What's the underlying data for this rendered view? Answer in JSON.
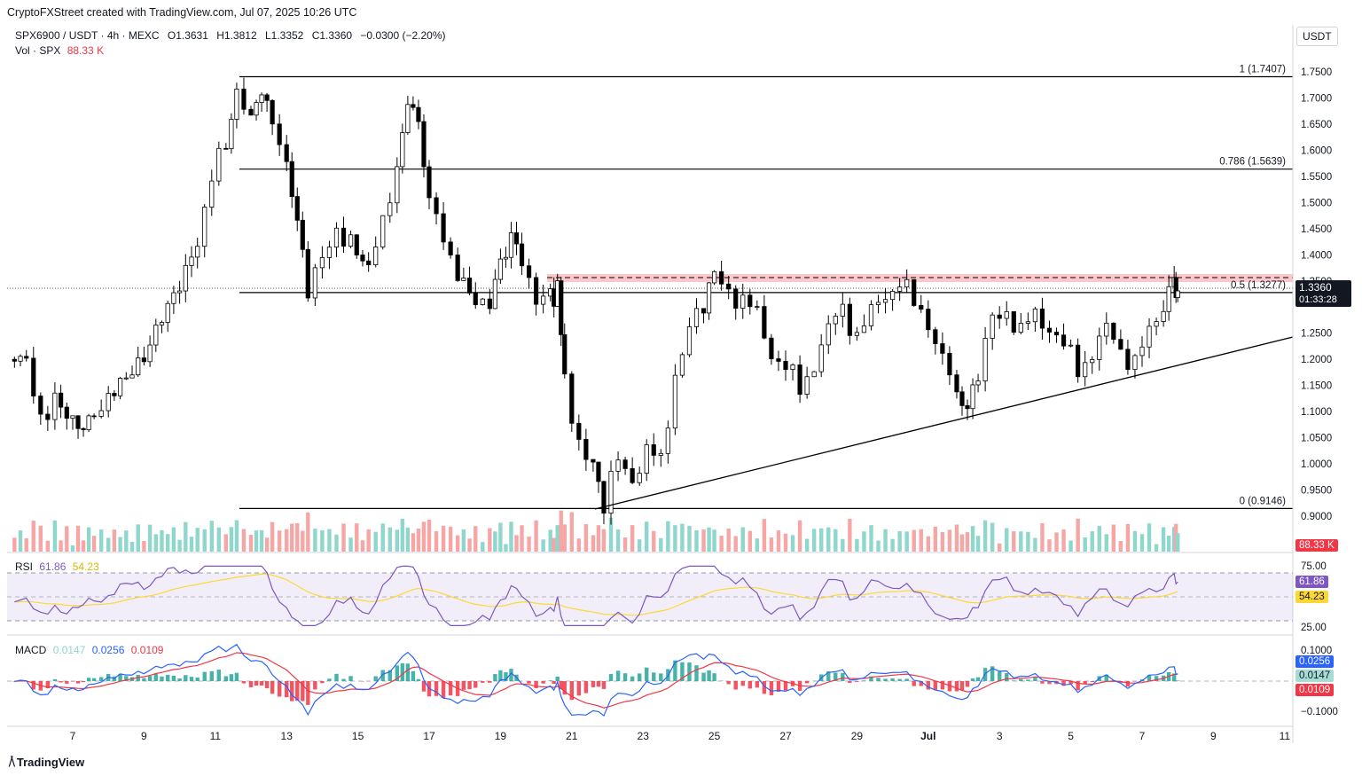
{
  "header": {
    "attribution": "CryptoFXStreet created with TradingView.com, Jul 07, 2025 10:26 UTC",
    "symbol": "SPX6900 / USDT · 4h · MEXC",
    "open": "O1.3631",
    "high": "H1.3812",
    "low": "L1.3352",
    "close": "C1.3360",
    "change": "−0.0300 (−2.20%)",
    "vol_label": "Vol · SPX",
    "vol_value": "88.33 K",
    "currency": "USDT"
  },
  "price_tag": {
    "price": "1.3360",
    "countdown": "01:33:28"
  },
  "volume_tag": "88.33 K",
  "rsi": {
    "label": "RSI",
    "value": "61.86",
    "ma": "54.23",
    "levels": [
      "75.00",
      "25.00"
    ]
  },
  "macd": {
    "label": "MACD",
    "hist": "0.0147",
    "macd": "0.0256",
    "signal": "0.0109",
    "levels": [
      "0.1000",
      "−0.1000"
    ]
  },
  "fib_levels": [
    {
      "label": "1 (1.7407)",
      "price": 1.7407
    },
    {
      "label": "0.786 (1.5639)",
      "price": 1.5639
    },
    {
      "label": "0.5 (1.3277)",
      "price": 1.3277
    },
    {
      "label": "0 (0.9146)",
      "price": 0.9146
    }
  ],
  "brand": "TradingView",
  "colors": {
    "up": "#26a69a",
    "down": "#000000",
    "vol_up": "#8fd6cc",
    "vol_down": "#f7a6a6",
    "resistance": "#f23645",
    "rsi_line": "#7e57c2",
    "rsi_ma": "#fdd835",
    "macd_line": "#2962ff",
    "signal_line": "#f23645"
  },
  "chart_data": {
    "type": "candlestick",
    "title": "SPX6900 / USDT · 4h · MEXC",
    "y_axis": [
      "1.7500",
      "1.7000",
      "1.6500",
      "1.6000",
      "1.5500",
      "1.5000",
      "1.4500",
      "1.4000",
      "1.3500",
      "1.2500",
      "1.2000",
      "1.1500",
      "1.1000",
      "1.0500",
      "1.0000",
      "0.9500",
      "0.9000"
    ],
    "ylim": [
      0.89,
      1.77
    ],
    "x_axis": [
      "7",
      "9",
      "11",
      "13",
      "15",
      "17",
      "19",
      "21",
      "23",
      "25",
      "27",
      "29",
      "Jul",
      "3",
      "5",
      "7",
      "9",
      "11"
    ],
    "resistance_zone": [
      1.3277,
      1.362
    ],
    "trendline": {
      "start": [
        "Jun 21",
        0.915
      ],
      "end": [
        "Jul 10",
        1.24
      ]
    },
    "key_closes": [
      {
        "date": "Jun 5",
        "close": 1.18
      },
      {
        "date": "Jun 11",
        "close": 1.69
      },
      {
        "date": "Jun 16",
        "close": 1.7
      },
      {
        "date": "Jun 20",
        "close": 1.35
      },
      {
        "date": "Jun 22",
        "close": 0.92
      },
      {
        "date": "Jun 25",
        "close": 1.35
      },
      {
        "date": "Jun 28",
        "close": 1.12
      },
      {
        "date": "Jun 30",
        "close": 1.35
      },
      {
        "date": "Jul 2",
        "close": 1.09
      },
      {
        "date": "Jul 3",
        "close": 1.3
      },
      {
        "date": "Jul 7",
        "close": 1.336
      }
    ]
  }
}
